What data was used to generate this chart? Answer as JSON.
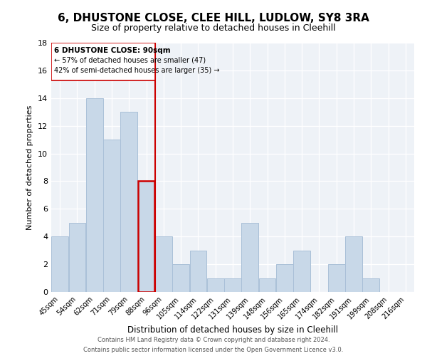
{
  "title": "6, DHUSTONE CLOSE, CLEE HILL, LUDLOW, SY8 3RA",
  "subtitle": "Size of property relative to detached houses in Cleehill",
  "xlabel": "Distribution of detached houses by size in Cleehill",
  "ylabel": "Number of detached properties",
  "bar_color": "#c8d8e8",
  "bar_edge_color": "#aac0d8",
  "highlight_color": "#cc0000",
  "bins": [
    "45sqm",
    "54sqm",
    "62sqm",
    "71sqm",
    "79sqm",
    "88sqm",
    "96sqm",
    "105sqm",
    "114sqm",
    "122sqm",
    "131sqm",
    "139sqm",
    "148sqm",
    "156sqm",
    "165sqm",
    "174sqm",
    "182sqm",
    "191sqm",
    "199sqm",
    "208sqm",
    "216sqm"
  ],
  "values": [
    4,
    5,
    14,
    11,
    13,
    8,
    4,
    2,
    3,
    1,
    1,
    5,
    1,
    2,
    3,
    0,
    2,
    4,
    1,
    0,
    0
  ],
  "highlight_bin_index": 5,
  "highlight_label": "6 DHUSTONE CLOSE: 90sqm",
  "annotation_line1": "← 57% of detached houses are smaller (47)",
  "annotation_line2": "42% of semi-detached houses are larger (35) →",
  "ylim": [
    0,
    18
  ],
  "yticks": [
    0,
    2,
    4,
    6,
    8,
    10,
    12,
    14,
    16,
    18
  ],
  "footnote1": "Contains HM Land Registry data © Crown copyright and database right 2024.",
  "footnote2": "Contains public sector information licensed under the Open Government Licence v3.0.",
  "bg_color": "#eef2f7"
}
